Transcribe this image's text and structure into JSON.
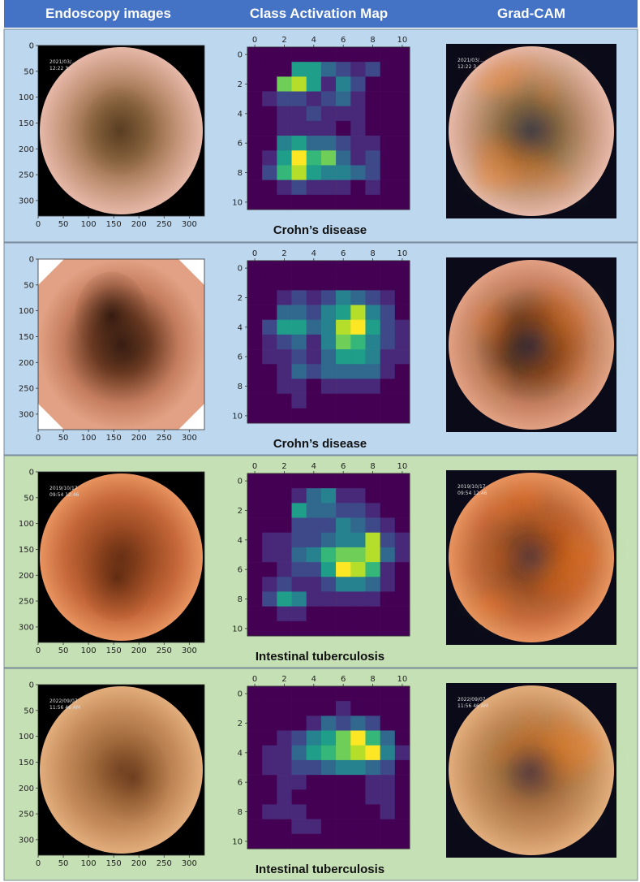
{
  "headers": [
    "Endoscopy images",
    "Class Activation Map",
    "Grad-CAM"
  ],
  "colors": {
    "header_bg": "#4472c4",
    "crohn_bg": "#bdd7ee",
    "tb_bg": "#c5e0b4",
    "viridis": [
      "#440154",
      "#482878",
      "#3e4989",
      "#31688e",
      "#26828e",
      "#1f9e89",
      "#35b779",
      "#6ece58",
      "#b5de2b",
      "#fde725"
    ]
  },
  "axes": {
    "endo_ticks_x": [
      "0",
      "50",
      "100",
      "150",
      "200",
      "250",
      "300"
    ],
    "endo_ticks_y": [
      "0",
      "50",
      "100",
      "150",
      "200",
      "250",
      "300"
    ],
    "cam_ticks": [
      "0",
      "2",
      "4",
      "6",
      "8",
      "10"
    ]
  },
  "rows": [
    {
      "label": "Crohn’s disease",
      "endo_overlay_text": [
        "2021/03/...",
        "12:22 3..."
      ],
      "gradcam_overlay_text": [
        "2021/03/...",
        "12:22 3..."
      ],
      "cam_grid": [
        [
          0,
          0,
          0,
          0,
          0,
          0,
          0,
          0,
          0,
          0,
          0
        ],
        [
          0,
          0,
          0,
          5,
          5,
          3,
          2,
          1,
          2,
          0,
          0
        ],
        [
          0,
          0,
          7,
          8,
          5,
          1,
          4,
          2,
          0,
          0,
          0
        ],
        [
          0,
          1,
          2,
          2,
          1,
          2,
          3,
          1,
          0,
          0,
          0
        ],
        [
          0,
          0,
          1,
          1,
          2,
          1,
          1,
          1,
          0,
          0,
          0
        ],
        [
          0,
          0,
          1,
          1,
          1,
          1,
          0,
          1,
          0,
          0,
          0
        ],
        [
          0,
          0,
          4,
          5,
          3,
          3,
          2,
          1,
          1,
          0,
          0
        ],
        [
          0,
          1,
          5,
          9,
          6,
          7,
          3,
          1,
          2,
          0,
          0
        ],
        [
          0,
          2,
          6,
          8,
          5,
          4,
          4,
          3,
          2,
          0,
          0
        ],
        [
          0,
          0,
          1,
          2,
          1,
          1,
          1,
          0,
          1,
          0,
          0
        ],
        [
          0,
          0,
          0,
          0,
          0,
          0,
          0,
          0,
          0,
          0,
          0
        ]
      ]
    },
    {
      "label": "Crohn’s disease",
      "endo_overlay_text": [],
      "gradcam_overlay_text": [],
      "cam_grid": [
        [
          0,
          0,
          0,
          0,
          0,
          0,
          0,
          0,
          0,
          0,
          0
        ],
        [
          0,
          0,
          0,
          0,
          0,
          0,
          0,
          0,
          0,
          0,
          0
        ],
        [
          0,
          0,
          1,
          2,
          1,
          2,
          4,
          3,
          2,
          1,
          0
        ],
        [
          0,
          0,
          3,
          3,
          2,
          4,
          5,
          8,
          4,
          2,
          0
        ],
        [
          0,
          2,
          5,
          5,
          3,
          4,
          8,
          9,
          5,
          2,
          1
        ],
        [
          0,
          1,
          2,
          3,
          1,
          4,
          7,
          6,
          4,
          2,
          1
        ],
        [
          0,
          1,
          1,
          2,
          1,
          3,
          5,
          5,
          4,
          1,
          1
        ],
        [
          0,
          0,
          1,
          3,
          2,
          3,
          3,
          3,
          3,
          1,
          0
        ],
        [
          0,
          0,
          1,
          1,
          0,
          1,
          1,
          1,
          1,
          0,
          0
        ],
        [
          0,
          0,
          0,
          1,
          0,
          0,
          0,
          0,
          0,
          0,
          0
        ],
        [
          0,
          0,
          0,
          0,
          0,
          0,
          0,
          0,
          0,
          0,
          0
        ]
      ]
    },
    {
      "label": "Intestinal tuberculosis",
      "endo_overlay_text": [
        "2019/10/17",
        "09:54 12:46"
      ],
      "gradcam_overlay_text": [
        "2019/10/17",
        "09:54 12:46"
      ],
      "cam_grid": [
        [
          0,
          0,
          0,
          0,
          0,
          0,
          0,
          0,
          0,
          0,
          0
        ],
        [
          0,
          0,
          0,
          1,
          3,
          4,
          1,
          1,
          0,
          0,
          0
        ],
        [
          0,
          0,
          0,
          5,
          3,
          3,
          2,
          2,
          1,
          0,
          0
        ],
        [
          0,
          0,
          0,
          2,
          2,
          2,
          4,
          3,
          2,
          1,
          0
        ],
        [
          0,
          1,
          1,
          2,
          2,
          3,
          4,
          4,
          8,
          2,
          1
        ],
        [
          0,
          1,
          1,
          3,
          4,
          6,
          7,
          7,
          8,
          3,
          1
        ],
        [
          0,
          0,
          1,
          2,
          2,
          5,
          9,
          8,
          6,
          1,
          0
        ],
        [
          0,
          1,
          2,
          1,
          1,
          2,
          4,
          4,
          3,
          1,
          0
        ],
        [
          0,
          2,
          5,
          4,
          1,
          1,
          1,
          1,
          1,
          0,
          0
        ],
        [
          0,
          0,
          1,
          1,
          0,
          0,
          0,
          0,
          0,
          0,
          0
        ],
        [
          0,
          0,
          0,
          0,
          0,
          0,
          0,
          0,
          0,
          0,
          0
        ]
      ]
    },
    {
      "label": "Intestinal tuberculosis",
      "endo_overlay_text": [
        "2022/09/07",
        "11:56 46 AM"
      ],
      "gradcam_overlay_text": [
        "2022/09/07",
        "11:56 46 AM"
      ],
      "cam_grid": [
        [
          0,
          0,
          0,
          0,
          0,
          0,
          0,
          0,
          0,
          0,
          0
        ],
        [
          0,
          0,
          0,
          0,
          0,
          0,
          1,
          0,
          0,
          0,
          0
        ],
        [
          0,
          0,
          0,
          0,
          1,
          3,
          2,
          3,
          2,
          0,
          0
        ],
        [
          0,
          0,
          1,
          2,
          4,
          5,
          7,
          9,
          6,
          3,
          0
        ],
        [
          0,
          1,
          1,
          3,
          5,
          6,
          7,
          8,
          9,
          4,
          1
        ],
        [
          0,
          1,
          1,
          2,
          2,
          3,
          4,
          4,
          3,
          2,
          0
        ],
        [
          0,
          0,
          1,
          1,
          0,
          0,
          0,
          0,
          1,
          1,
          0
        ],
        [
          0,
          0,
          1,
          0,
          0,
          0,
          0,
          0,
          1,
          1,
          0
        ],
        [
          0,
          1,
          1,
          1,
          0,
          0,
          0,
          0,
          0,
          1,
          0
        ],
        [
          0,
          0,
          0,
          1,
          1,
          0,
          0,
          0,
          0,
          0,
          0
        ],
        [
          0,
          0,
          0,
          0,
          0,
          0,
          0,
          0,
          0,
          0,
          0
        ]
      ]
    }
  ]
}
